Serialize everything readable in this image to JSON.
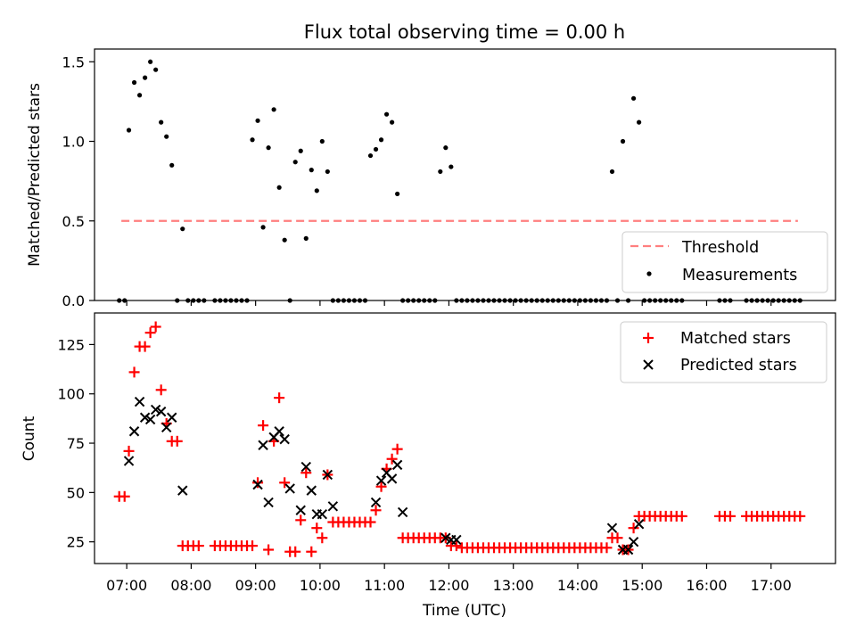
{
  "chart_data": [
    {
      "type": "scatter",
      "title": "Flux total observing time = 0.00 h",
      "xlabel": "",
      "ylabel": "Matched/Predicted stars",
      "ylim": [
        0,
        1.58
      ],
      "yticks": [
        0.0,
        0.5,
        1.0,
        1.5
      ],
      "ytick_labels": [
        "0.0",
        "0.5",
        "1.0",
        "1.5"
      ],
      "threshold": {
        "name": "Threshold",
        "value": 0.5,
        "x_start": "06:55",
        "x_end": "17:25",
        "color": "#ff7f7f",
        "style": "dashed"
      },
      "series": [
        {
          "name": "Measurements",
          "color": "#000000",
          "marker": "dot",
          "x": [
            "06:53",
            "06:58",
            "07:02",
            "07:07",
            "07:12",
            "07:17",
            "07:22",
            "07:27",
            "07:32",
            "07:37",
            "07:42",
            "07:47",
            "07:52",
            "07:57",
            "08:02",
            "08:07",
            "08:12",
            "08:22",
            "08:27",
            "08:32",
            "08:37",
            "08:42",
            "08:47",
            "08:52",
            "08:57",
            "09:02",
            "09:07",
            "09:12",
            "09:17",
            "09:22",
            "09:27",
            "09:32",
            "09:37",
            "09:42",
            "09:47",
            "09:52",
            "09:57",
            "10:02",
            "10:07",
            "10:12",
            "10:17",
            "10:22",
            "10:27",
            "10:32",
            "10:37",
            "10:42",
            "10:47",
            "10:52",
            "10:57",
            "11:02",
            "11:07",
            "11:12",
            "11:17",
            "11:22",
            "11:27",
            "11:32",
            "11:37",
            "11:42",
            "11:47",
            "11:52",
            "11:57",
            "12:02",
            "12:07",
            "12:12",
            "12:17",
            "12:22",
            "12:27",
            "12:32",
            "12:37",
            "12:42",
            "12:47",
            "12:52",
            "12:57",
            "13:02",
            "13:07",
            "13:12",
            "13:17",
            "13:22",
            "13:27",
            "13:32",
            "13:37",
            "13:42",
            "13:47",
            "13:52",
            "13:57",
            "14:02",
            "14:07",
            "14:12",
            "14:17",
            "14:22",
            "14:27",
            "14:32",
            "14:37",
            "14:42",
            "14:47",
            "14:52",
            "14:57",
            "15:02",
            "15:07",
            "15:12",
            "15:17",
            "15:22",
            "15:27",
            "15:32",
            "15:37",
            "16:12",
            "16:17",
            "16:22",
            "16:37",
            "16:42",
            "16:47",
            "16:52",
            "16:57",
            "17:02",
            "17:07",
            "17:12",
            "17:17",
            "17:22",
            "17:27"
          ],
          "y": [
            0,
            0,
            1.07,
            1.37,
            1.29,
            1.4,
            1.5,
            1.45,
            1.12,
            1.03,
            0.85,
            0,
            0.45,
            0,
            0,
            0,
            0,
            0,
            0,
            0,
            0,
            0,
            0,
            0,
            1.01,
            1.13,
            0.46,
            0.96,
            1.2,
            0.71,
            0.38,
            0,
            0.87,
            0.94,
            0.39,
            0.82,
            0.69,
            1.0,
            0.81,
            0,
            0,
            0,
            0,
            0,
            0,
            0,
            0.91,
            0.95,
            1.01,
            1.17,
            1.12,
            0.67,
            0,
            0,
            0,
            0,
            0,
            0,
            0,
            0.81,
            0.96,
            0.84,
            0,
            0,
            0,
            0,
            0,
            0,
            0,
            0,
            0,
            0,
            0,
            0,
            0,
            0,
            0,
            0,
            0,
            0,
            0,
            0,
            0,
            0,
            0,
            0,
            0,
            0,
            0,
            0,
            0,
            0.81,
            0,
            1.0,
            0,
            1.27,
            1.12,
            0,
            0,
            0,
            0,
            0,
            0,
            0,
            0,
            0,
            0,
            0,
            0,
            0,
            0,
            0,
            0,
            0,
            0,
            0,
            0,
            0,
            0
          ]
        }
      ],
      "legend": [
        "Threshold",
        "Measurements"
      ],
      "legend_location": "lower right"
    },
    {
      "type": "scatter",
      "title": "",
      "xlabel": "Time (UTC)",
      "ylabel": "Count",
      "xlim": [
        "06:30",
        "18:00"
      ],
      "ylim": [
        14,
        141
      ],
      "yticks": [
        25,
        50,
        75,
        100,
        125
      ],
      "ytick_labels": [
        "25",
        "50",
        "75",
        "100",
        "125"
      ],
      "xticks": [
        "07:00",
        "08:00",
        "09:00",
        "10:00",
        "11:00",
        "12:00",
        "13:00",
        "14:00",
        "15:00",
        "16:00",
        "17:00"
      ],
      "series": [
        {
          "name": "Matched stars",
          "color": "#ff0000",
          "marker": "plus",
          "x": [
            "06:53",
            "06:58",
            "07:02",
            "07:07",
            "07:12",
            "07:17",
            "07:22",
            "07:27",
            "07:32",
            "07:37",
            "07:42",
            "07:47",
            "07:52",
            "07:57",
            "08:02",
            "08:07",
            "08:22",
            "08:27",
            "08:32",
            "08:37",
            "08:42",
            "08:47",
            "08:52",
            "08:57",
            "09:02",
            "09:07",
            "09:12",
            "09:17",
            "09:22",
            "09:27",
            "09:32",
            "09:37",
            "09:42",
            "09:47",
            "09:52",
            "09:57",
            "10:02",
            "10:07",
            "10:12",
            "10:17",
            "10:22",
            "10:27",
            "10:32",
            "10:37",
            "10:42",
            "10:47",
            "10:52",
            "10:57",
            "11:02",
            "11:07",
            "11:12",
            "11:17",
            "11:22",
            "11:27",
            "11:32",
            "11:37",
            "11:42",
            "11:47",
            "11:52",
            "11:57",
            "12:02",
            "12:07",
            "12:12",
            "12:17",
            "12:22",
            "12:27",
            "12:32",
            "12:37",
            "12:42",
            "12:47",
            "12:52",
            "12:57",
            "13:02",
            "13:07",
            "13:12",
            "13:17",
            "13:22",
            "13:27",
            "13:32",
            "13:37",
            "13:42",
            "13:47",
            "13:52",
            "13:57",
            "14:02",
            "14:07",
            "14:12",
            "14:17",
            "14:22",
            "14:27",
            "14:32",
            "14:37",
            "14:42",
            "14:47",
            "14:52",
            "14:57",
            "15:02",
            "15:07",
            "15:12",
            "15:17",
            "15:22",
            "15:27",
            "15:32",
            "15:37",
            "16:12",
            "16:17",
            "16:22",
            "16:37",
            "16:42",
            "16:47",
            "16:52",
            "16:57",
            "17:02",
            "17:07",
            "17:12",
            "17:17",
            "17:22",
            "17:27"
          ],
          "y": [
            48,
            48,
            71,
            111,
            124,
            124,
            131,
            134,
            102,
            85,
            76,
            76,
            23,
            23,
            23,
            23,
            23,
            23,
            23,
            23,
            23,
            23,
            23,
            23,
            55,
            84,
            21,
            76,
            98,
            55,
            20,
            20,
            36,
            60,
            20,
            32,
            27,
            59,
            35,
            35,
            35,
            35,
            35,
            35,
            35,
            35,
            41,
            53,
            62,
            67,
            72,
            27,
            27,
            27,
            27,
            27,
            27,
            27,
            27,
            27,
            23,
            23,
            22,
            22,
            22,
            22,
            22,
            22,
            22,
            22,
            22,
            22,
            22,
            22,
            22,
            22,
            22,
            22,
            22,
            22,
            22,
            22,
            22,
            22,
            22,
            22,
            22,
            22,
            22,
            22,
            27,
            27,
            21,
            21,
            32,
            38,
            38,
            38,
            38,
            38,
            38,
            38,
            38,
            38,
            38,
            38,
            38,
            38,
            38,
            38,
            38,
            38,
            38,
            38,
            38,
            38,
            38,
            38
          ]
        },
        {
          "name": "Predicted stars",
          "color": "#000000",
          "marker": "x",
          "x": [
            "07:02",
            "07:07",
            "07:12",
            "07:17",
            "07:22",
            "07:27",
            "07:32",
            "07:37",
            "07:42",
            "07:52",
            "09:02",
            "09:07",
            "09:12",
            "09:17",
            "09:22",
            "09:27",
            "09:32",
            "09:42",
            "09:47",
            "09:52",
            "09:57",
            "10:02",
            "10:07",
            "10:12",
            "10:52",
            "10:57",
            "11:02",
            "11:07",
            "11:12",
            "11:17",
            "11:22",
            "11:57",
            "12:02",
            "12:07",
            "14:32",
            "14:42",
            "14:47",
            "14:52",
            "14:57"
          ],
          "y": [
            66,
            81,
            96,
            88,
            87,
            92,
            91,
            83,
            88,
            51,
            54,
            74,
            45,
            78,
            81,
            77,
            52,
            41,
            63,
            51,
            39,
            39,
            59,
            43,
            45,
            56,
            60,
            57,
            64,
            40,
            null,
            27,
            26,
            26,
            32,
            21,
            21,
            25,
            34
          ]
        }
      ],
      "legend": [
        "Matched stars",
        "Predicted stars"
      ],
      "legend_location": "upper right"
    }
  ]
}
